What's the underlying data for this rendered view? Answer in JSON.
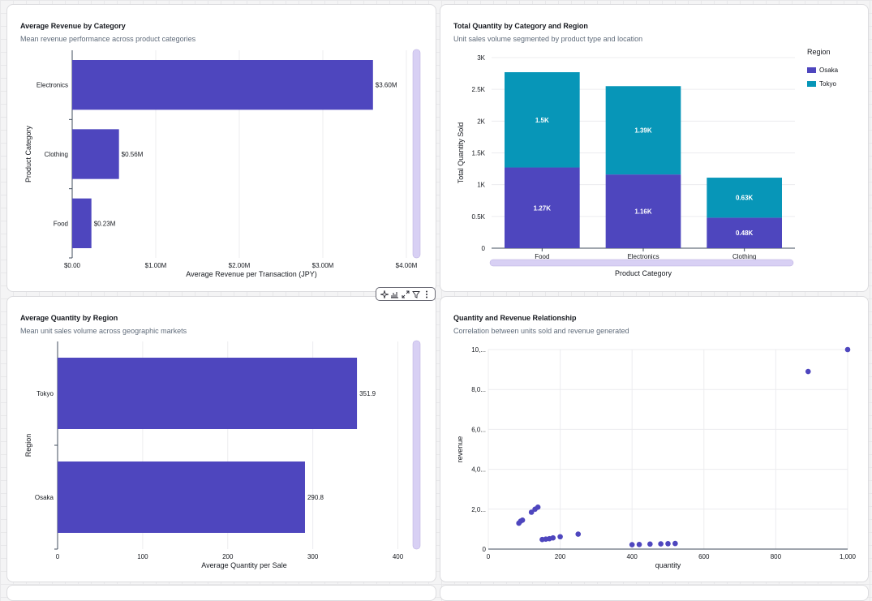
{
  "dashboard": {
    "cards": [
      {
        "title": "Average Revenue by Category",
        "subtitle": "Mean revenue performance across product categories"
      },
      {
        "title": "Total Quantity by Category and Region",
        "subtitle": "Unit sales volume segmented by product type and location"
      },
      {
        "title": "Average Quantity by Region",
        "subtitle": "Mean unit sales volume across geographic markets"
      },
      {
        "title": "Quantity and Revenue Relationship",
        "subtitle": "Correlation between units sold and revenue generated"
      }
    ],
    "toolbar": {
      "icons": [
        "sparkle-icon",
        "chart-type-icon",
        "expand-icon",
        "filter-icon",
        "more-options-icon"
      ]
    }
  },
  "chart_data": [
    {
      "type": "bar",
      "orientation": "horizontal",
      "categories": [
        "Electronics",
        "Clothing",
        "Food"
      ],
      "values": [
        3600000,
        560000,
        230000
      ],
      "data_labels": [
        "$3.60M",
        "$0.56M",
        "$0.23M"
      ],
      "xlabel": "Average Revenue per Transaction (JPY)",
      "ylabel": "Product Category",
      "xlim": [
        0,
        4000000
      ],
      "x_ticks": [
        0,
        1000000,
        2000000,
        3000000,
        4000000
      ],
      "x_tick_labels": [
        "$0.00",
        "$1.00M",
        "$2.00M",
        "$3.00M",
        "$4.00M"
      ],
      "grid": true,
      "color": "#4e46be"
    },
    {
      "type": "bar",
      "stacked": true,
      "categories": [
        "Food",
        "Electronics",
        "Clothing"
      ],
      "series": [
        {
          "name": "Osaka",
          "values": [
            1270,
            1160,
            480
          ],
          "labels": [
            "1.27K",
            "1.16K",
            "0.48K"
          ],
          "color": "#4e46be"
        },
        {
          "name": "Tokyo",
          "values": [
            1500,
            1390,
            630
          ],
          "labels": [
            "1.5K",
            "1.39K",
            "0.63K"
          ],
          "color": "#0796b8"
        }
      ],
      "xlabel": "Product Category",
      "ylabel": "Total Quantity Sold",
      "ylim": [
        0,
        3000
      ],
      "y_ticks": [
        0,
        500,
        1000,
        1500,
        2000,
        2500,
        3000
      ],
      "y_tick_labels": [
        "0",
        "0.5K",
        "1K",
        "1.5K",
        "2K",
        "2.5K",
        "3K"
      ],
      "legend_title": "Region",
      "legend_position": "top-right",
      "grid": true
    },
    {
      "type": "bar",
      "orientation": "horizontal",
      "categories": [
        "Tokyo",
        "Osaka"
      ],
      "values": [
        351.9,
        290.8
      ],
      "data_labels": [
        "351.9",
        "290.8"
      ],
      "xlabel": "Average Quantity per Sale",
      "ylabel": "Region",
      "xlim": [
        0,
        410
      ],
      "x_ticks": [
        0,
        100,
        200,
        300,
        400
      ],
      "x_tick_labels": [
        "0",
        "100",
        "200",
        "300",
        "400"
      ],
      "grid": true,
      "color": "#4e46be"
    },
    {
      "type": "scatter",
      "xlabel": "quantity",
      "ylabel": "revenue",
      "xlim": [
        0,
        1000
      ],
      "ylim": [
        0,
        10000000
      ],
      "x_ticks": [
        0,
        200,
        400,
        600,
        800,
        1000
      ],
      "x_tick_labels": [
        "0",
        "200",
        "400",
        "600",
        "800",
        "1,000"
      ],
      "y_ticks": [
        0,
        2000000,
        4000000,
        6000000,
        8000000,
        10000000
      ],
      "y_tick_labels": [
        "0",
        "2,0...",
        "4,0...",
        "6,0...",
        "8,0...",
        "10,..."
      ],
      "grid": true,
      "color": "#4e46be",
      "points": [
        {
          "x": 85,
          "y": 1300000
        },
        {
          "x": 90,
          "y": 1400000
        },
        {
          "x": 95,
          "y": 1450000
        },
        {
          "x": 120,
          "y": 1850000
        },
        {
          "x": 130,
          "y": 2000000
        },
        {
          "x": 138,
          "y": 2100000
        },
        {
          "x": 150,
          "y": 480000
        },
        {
          "x": 160,
          "y": 500000
        },
        {
          "x": 170,
          "y": 520000
        },
        {
          "x": 180,
          "y": 560000
        },
        {
          "x": 200,
          "y": 620000
        },
        {
          "x": 250,
          "y": 750000
        },
        {
          "x": 400,
          "y": 220000
        },
        {
          "x": 420,
          "y": 230000
        },
        {
          "x": 450,
          "y": 250000
        },
        {
          "x": 480,
          "y": 260000
        },
        {
          "x": 500,
          "y": 270000
        },
        {
          "x": 520,
          "y": 280000
        },
        {
          "x": 890,
          "y": 8900000
        },
        {
          "x": 1000,
          "y": 10000000
        }
      ]
    }
  ]
}
